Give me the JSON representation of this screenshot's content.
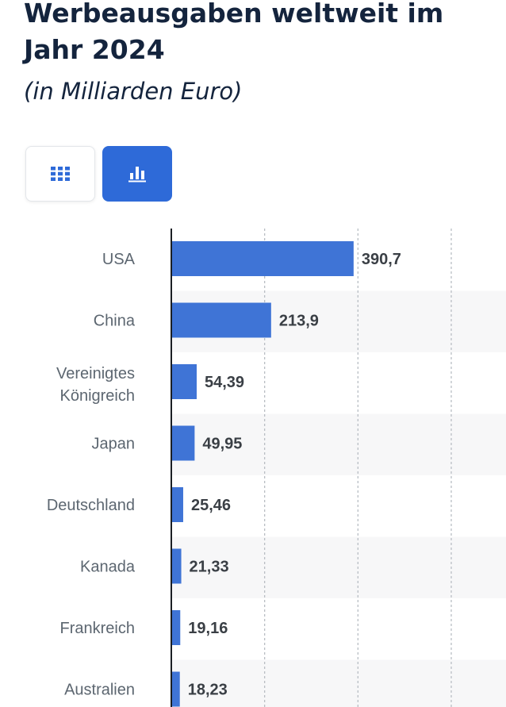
{
  "header": {
    "title": "Werbeausgaben weltweit im Jahr 2024",
    "subtitle": "(in Milliarden Euro)"
  },
  "view_toggle": {
    "table_icon": "grid-icon",
    "chart_icon": "bar-chart-icon",
    "active": "chart",
    "active_color": "#2e6ad8"
  },
  "chart_data": {
    "type": "bar",
    "orientation": "horizontal",
    "title": "Werbeausgaben weltweit im Jahr 2024",
    "subtitle": "(in Milliarden Euro)",
    "categories": [
      "USA",
      "China",
      "Vereinigtes Königreich",
      "Japan",
      "Deutschland",
      "Kanada",
      "Frankreich",
      "Australien"
    ],
    "values": [
      390.7,
      213.9,
      54.39,
      49.95,
      25.46,
      21.33,
      19.16,
      18.23
    ],
    "value_labels": [
      "390,7",
      "213,9",
      "54,39",
      "49,95",
      "25,46",
      "21,33",
      "19,16",
      "18,23"
    ],
    "xlim": [
      0,
      600
    ],
    "gridlines": [
      200,
      400,
      600
    ],
    "bar_color": "#3f74d6",
    "xlabel": "",
    "ylabel": ""
  }
}
